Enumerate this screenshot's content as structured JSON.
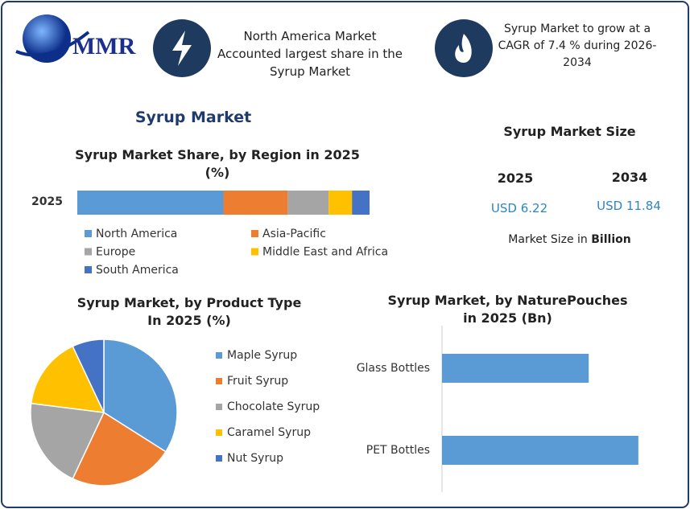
{
  "header": {
    "logo": "MMR",
    "note_left": "North America Market Accounted largest share in the Syrup Market",
    "note_right": "Syrup Market to grow at a CAGR of  7.4 % during 2026-2034"
  },
  "main_title": "Syrup Market",
  "market_size": {
    "title": "Syrup Market Size",
    "years": [
      "2025",
      "2034"
    ],
    "values": [
      "USD 6.22",
      "USD 11.84"
    ],
    "unit_note": "Market Size in ",
    "unit": "Billion"
  },
  "chart_data": [
    {
      "type": "stacked-bar-h",
      "title": "Syrup Market Share, by Region in 2025 (%)",
      "categories": [
        "2025"
      ],
      "xlim": [
        0,
        100
      ],
      "series": [
        {
          "name": "North America",
          "color": "#5b9bd5",
          "values": [
            50
          ]
        },
        {
          "name": "Asia-Pacific",
          "color": "#ed7d31",
          "values": [
            22
          ]
        },
        {
          "name": "Europe",
          "color": "#a5a5a5",
          "values": [
            14
          ]
        },
        {
          "name": "Middle East and Africa",
          "color": "#ffc000",
          "values": [
            8
          ]
        },
        {
          "name": "South America",
          "color": "#4472c4",
          "values": [
            6
          ]
        }
      ]
    },
    {
      "type": "pie",
      "title": "Syrup Market, by Product Type  In 2025 (%)",
      "categories": [
        "Maple Syrup",
        "Fruit Syrup",
        "Chocolate Syrup",
        "Caramel Syrup",
        "Nut Syrup"
      ],
      "values": [
        34,
        23,
        20,
        16,
        7
      ],
      "colors": [
        "#5b9bd5",
        "#ed7d31",
        "#a5a5a5",
        "#ffc000",
        "#4472c4"
      ]
    },
    {
      "type": "bar-h",
      "title": "Syrup Market, by NaturePouches in 2025 (Bn)",
      "categories": [
        "Glass Bottles",
        "PET Bottles"
      ],
      "values": [
        2.66,
        3.56
      ],
      "color": "#5b9bd5",
      "xlim": [
        0,
        4
      ]
    }
  ]
}
